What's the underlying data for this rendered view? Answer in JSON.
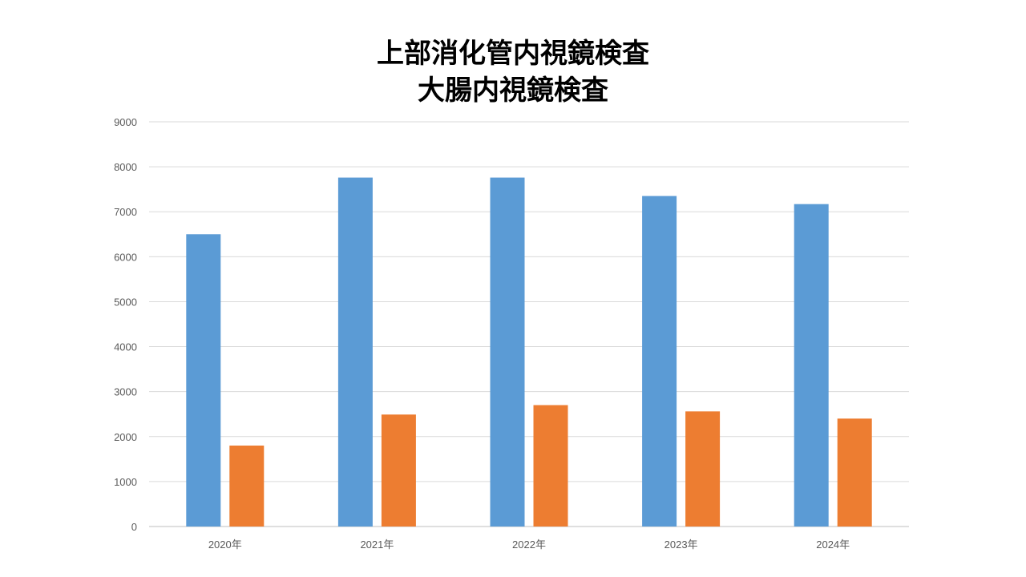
{
  "chart_data": {
    "type": "bar",
    "title_lines": [
      "上部消化管内視鏡検査",
      "大腸内視鏡検査"
    ],
    "xlabel": "",
    "ylabel": "",
    "categories": [
      "2020年",
      "2021年",
      "2022年",
      "2023年",
      "2024年"
    ],
    "series": [
      {
        "values": [
          6500,
          7760,
          7760,
          7350,
          7170
        ]
      },
      {
        "values": [
          1800,
          2490,
          2700,
          2560,
          2400
        ]
      }
    ],
    "colors": [
      "#5B9BD5",
      "#ED7D31"
    ],
    "ylim": [
      0,
      9000
    ],
    "yticks": [
      0,
      1000,
      2000,
      3000,
      4000,
      5000,
      6000,
      7000,
      8000,
      9000
    ],
    "grid": true,
    "legend": "none"
  }
}
